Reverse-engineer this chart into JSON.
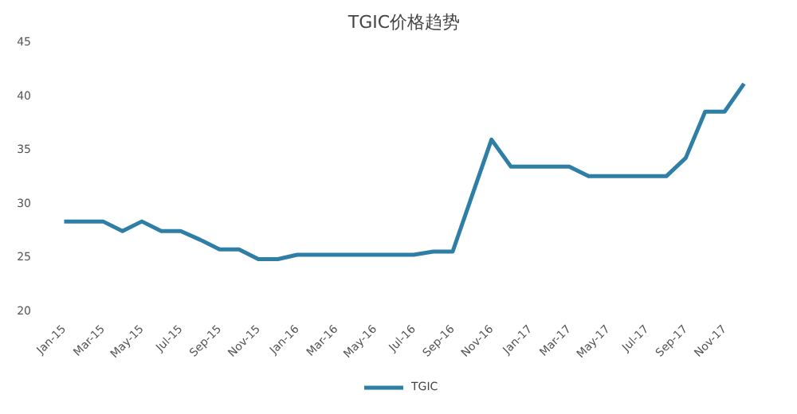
{
  "chart_data": {
    "type": "line",
    "title": "TGIC价格趋势",
    "categories": [
      "Jan-15",
      null,
      "Mar-15",
      null,
      "May-15",
      null,
      "Jul-15",
      null,
      "Sep-15",
      null,
      "Nov-15",
      null,
      "Jan-16",
      null,
      "Mar-16",
      null,
      "May-16",
      null,
      "Jul-16",
      null,
      "Sep-16",
      null,
      "Nov-16",
      null,
      "Jan-17",
      null,
      "Mar-17",
      null,
      "May-17",
      null,
      "Jul-17",
      null,
      "Sep-17",
      null,
      "Nov-17",
      null
    ],
    "series": [
      {
        "name": "TGIC",
        "color": "#2e7ea6",
        "values": [
          28.2,
          28.2,
          28.2,
          27.3,
          28.2,
          27.3,
          27.3,
          26.5,
          25.6,
          25.6,
          24.7,
          24.7,
          25.1,
          25.1,
          25.1,
          25.1,
          25.1,
          25.1,
          25.1,
          25.4,
          25.4,
          30.6,
          35.8,
          33.3,
          33.3,
          33.3,
          33.3,
          32.4,
          32.4,
          32.4,
          32.4,
          32.4,
          34.1,
          38.4,
          38.4,
          41.0
        ]
      }
    ],
    "ylim": [
      20,
      45
    ],
    "yticks": [
      20,
      25,
      30,
      35,
      40,
      45
    ],
    "grid": false,
    "legend": "bottom",
    "marker": "none",
    "line_style": "solid"
  }
}
